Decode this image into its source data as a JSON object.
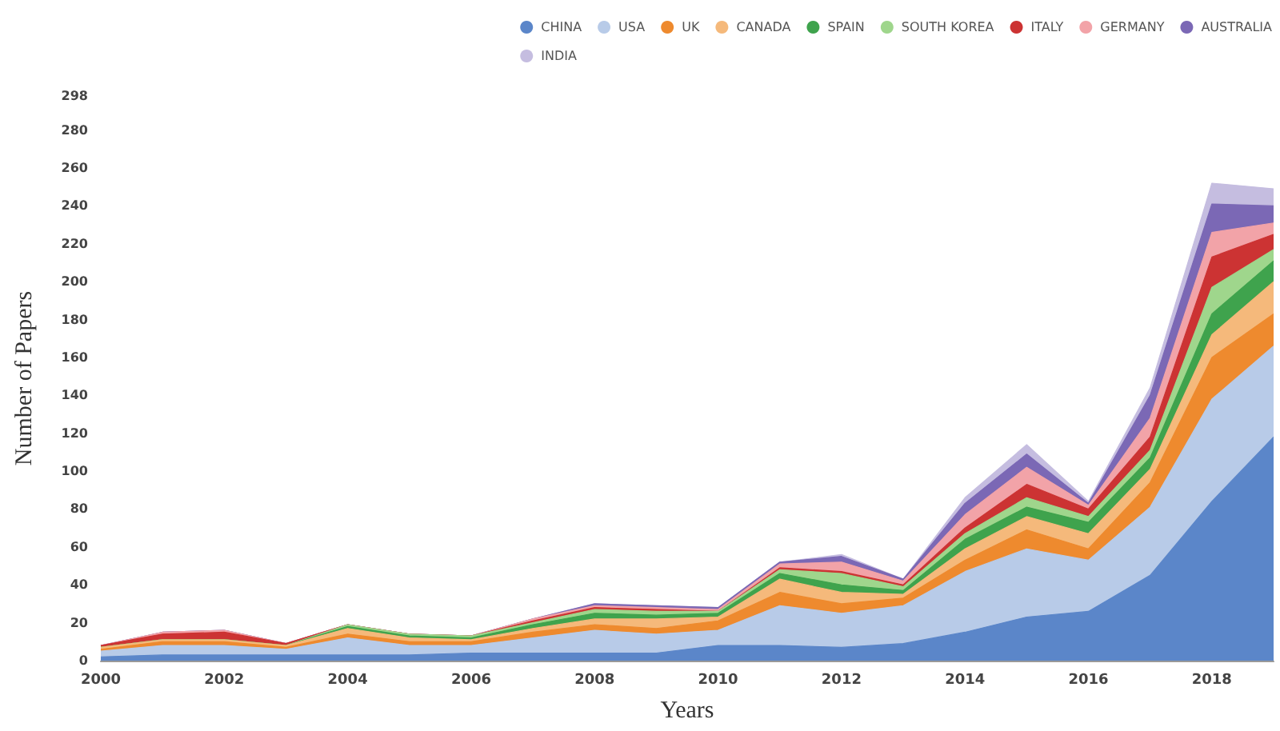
{
  "chart_data": {
    "type": "area",
    "xlabel": "Years",
    "ylabel": "Number of Papers",
    "x": [
      2000,
      2001,
      2002,
      2003,
      2004,
      2005,
      2006,
      2007,
      2008,
      2009,
      2010,
      2011,
      2012,
      2013,
      2014,
      2015,
      2016,
      2017,
      2018,
      2019
    ],
    "xlim": [
      2000,
      2019
    ],
    "xticks": [
      2000,
      2002,
      2004,
      2006,
      2008,
      2010,
      2012,
      2014,
      2016,
      2018
    ],
    "ylim": [
      0,
      298
    ],
    "yticks": [
      0,
      20,
      40,
      60,
      80,
      100,
      120,
      140,
      160,
      180,
      200,
      220,
      240,
      260,
      280,
      298
    ],
    "stacked": true,
    "legend": "top right",
    "grid": false,
    "marker": "none",
    "series": [
      {
        "name": "CHINA",
        "color": "#5b86c9",
        "values": [
          2,
          3,
          3,
          3,
          3,
          3,
          4,
          4,
          4,
          4,
          8,
          8,
          7,
          9,
          15,
          23,
          26,
          45,
          84,
          118
        ]
      },
      {
        "name": "USA",
        "color": "#b8cbe8",
        "values": [
          3,
          5,
          5,
          3,
          9,
          5,
          4,
          8,
          12,
          10,
          8,
          21,
          18,
          20,
          32,
          36,
          27,
          36,
          54,
          48
        ]
      },
      {
        "name": "UK",
        "color": "#ee8a2e",
        "values": [
          1,
          2,
          2,
          1,
          2,
          2,
          2,
          3,
          3,
          3,
          5,
          7,
          5,
          4,
          6,
          10,
          6,
          13,
          22,
          17
        ]
      },
      {
        "name": "CANADA",
        "color": "#f5b97b",
        "values": [
          1,
          1,
          1,
          1,
          3,
          2,
          1,
          2,
          3,
          5,
          2,
          7,
          6,
          2,
          6,
          7,
          8,
          7,
          12,
          17
        ]
      },
      {
        "name": "SPAIN",
        "color": "#3fa34d",
        "values": [
          0,
          0,
          0,
          0,
          1,
          1,
          1,
          2,
          3,
          2,
          2,
          3,
          4,
          2,
          5,
          5,
          6,
          6,
          11,
          11
        ]
      },
      {
        "name": "SOUTH KOREA",
        "color": "#9fd68c",
        "values": [
          0,
          0,
          0,
          0,
          1,
          1,
          1,
          1,
          2,
          2,
          1,
          2,
          6,
          2,
          3,
          5,
          3,
          4,
          14,
          6
        ]
      },
      {
        "name": "ITALY",
        "color": "#cc3333",
        "values": [
          1,
          3,
          4,
          1,
          0,
          0,
          0,
          1,
          1,
          1,
          0,
          1,
          1,
          1,
          3,
          7,
          4,
          7,
          16,
          8
        ]
      },
      {
        "name": "GERMANY",
        "color": "#f2a3a8",
        "values": [
          0,
          1,
          1,
          0,
          0,
          0,
          0,
          1,
          1,
          1,
          1,
          2,
          5,
          2,
          7,
          9,
          2,
          10,
          13,
          6
        ]
      },
      {
        "name": "AUSTRALIA",
        "color": "#7b68b5",
        "values": [
          0,
          0,
          0,
          0,
          0,
          0,
          0,
          0,
          1,
          1,
          1,
          1,
          3,
          1,
          6,
          7,
          1,
          12,
          15,
          9
        ]
      },
      {
        "name": "INDIA",
        "color": "#c5bde0",
        "values": [
          0,
          0,
          0,
          0,
          0,
          0,
          0,
          0,
          0,
          0,
          0,
          0,
          1,
          0,
          3,
          5,
          1,
          4,
          11,
          9
        ]
      }
    ]
  }
}
